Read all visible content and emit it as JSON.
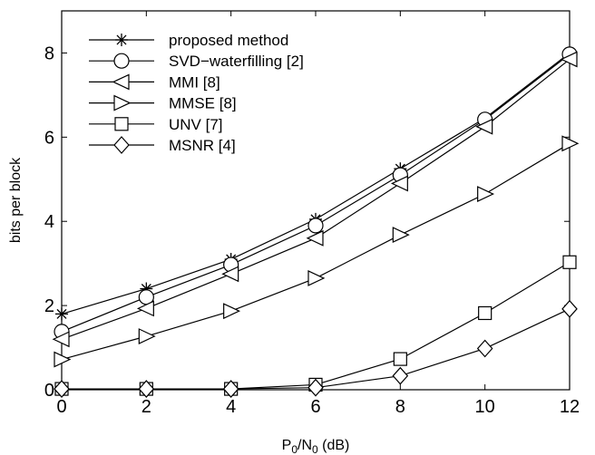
{
  "chart_data": {
    "type": "line",
    "xlabel": {
      "main": "P",
      "sub1": "0",
      "mid": "/N",
      "sub2": "0",
      "tail": " (dB)"
    },
    "ylabel": "bits per block",
    "xlim": [
      0,
      12
    ],
    "ylim": [
      0,
      9
    ],
    "xticks": [
      0,
      2,
      4,
      6,
      8,
      10,
      12
    ],
    "yticks": [
      0,
      2,
      4,
      6,
      8
    ],
    "grid": false,
    "legend_position": "top-left",
    "x": [
      0,
      2,
      4,
      6,
      8,
      10,
      12
    ],
    "series": [
      {
        "name": "proposed method",
        "marker": "asterisk",
        "values": [
          1.8,
          2.4,
          3.1,
          4.05,
          5.25,
          6.45,
          8.0
        ]
      },
      {
        "name": "SVD−waterfilling [2]",
        "marker": "circle",
        "values": [
          1.38,
          2.2,
          2.97,
          3.9,
          5.1,
          6.42,
          7.97
        ]
      },
      {
        "name": "MMI [8]",
        "marker": "triangle-left",
        "values": [
          1.2,
          1.93,
          2.75,
          3.6,
          4.9,
          6.25,
          7.85
        ]
      },
      {
        "name": "MMSE [8]",
        "marker": "triangle-right",
        "values": [
          0.72,
          1.27,
          1.87,
          2.65,
          3.68,
          4.65,
          5.85
        ]
      },
      {
        "name": "UNV [7]",
        "marker": "square",
        "values": [
          0.02,
          0.02,
          0.02,
          0.12,
          0.73,
          1.82,
          3.03
        ]
      },
      {
        "name": "MSNR [4]",
        "marker": "diamond",
        "values": [
          0.02,
          0.02,
          0.02,
          0.05,
          0.33,
          0.98,
          1.92
        ]
      }
    ]
  }
}
